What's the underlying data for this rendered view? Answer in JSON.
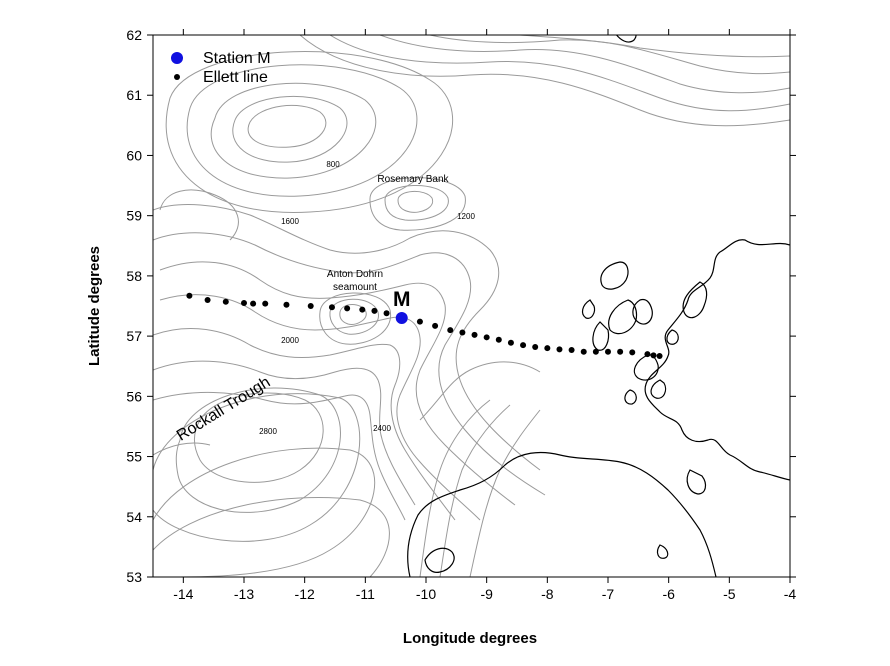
{
  "axes": {
    "xlabel": "Longitude degrees",
    "ylabel": "Latitude degrees",
    "xlim": [
      -14.5,
      -4
    ],
    "ylim": [
      53,
      62
    ],
    "xticks": [
      -14,
      -13,
      -12,
      -11,
      -10,
      -9,
      -8,
      -7,
      -6,
      -5,
      -4
    ],
    "yticks": [
      53,
      54,
      55,
      56,
      57,
      58,
      59,
      60,
      61,
      62
    ]
  },
  "legend": {
    "placement": "top-left",
    "items": [
      {
        "label": "Station M",
        "color": "#1010e0",
        "marker": "large-circle"
      },
      {
        "label": "Ellett line",
        "color": "#000000",
        "marker": "small-dot"
      }
    ]
  },
  "station": {
    "label": "M",
    "lon": -10.4,
    "lat": 57.3,
    "color": "#1010e0"
  },
  "ellett_line": {
    "color": "#000000",
    "points": [
      [
        -13.9,
        57.67
      ],
      [
        -13.6,
        57.6
      ],
      [
        -13.3,
        57.57
      ],
      [
        -13.0,
        57.55
      ],
      [
        -12.85,
        57.54
      ],
      [
        -12.65,
        57.54
      ],
      [
        -12.3,
        57.52
      ],
      [
        -11.9,
        57.5
      ],
      [
        -11.55,
        57.48
      ],
      [
        -11.3,
        57.46
      ],
      [
        -11.05,
        57.44
      ],
      [
        -10.85,
        57.42
      ],
      [
        -10.65,
        57.38
      ],
      [
        -10.1,
        57.24
      ],
      [
        -9.85,
        57.17
      ],
      [
        -9.6,
        57.1
      ],
      [
        -9.4,
        57.06
      ],
      [
        -9.2,
        57.02
      ],
      [
        -9.0,
        56.98
      ],
      [
        -8.8,
        56.94
      ],
      [
        -8.6,
        56.89
      ],
      [
        -8.4,
        56.85
      ],
      [
        -8.2,
        56.82
      ],
      [
        -8.0,
        56.8
      ],
      [
        -7.8,
        56.78
      ],
      [
        -7.6,
        56.77
      ],
      [
        -7.4,
        56.74
      ],
      [
        -7.2,
        56.74
      ],
      [
        -7.0,
        56.74
      ],
      [
        -6.8,
        56.74
      ],
      [
        -6.6,
        56.73
      ],
      [
        -6.35,
        56.7
      ],
      [
        -6.25,
        56.68
      ],
      [
        -6.15,
        56.67
      ]
    ]
  },
  "features": {
    "rosemary_bank": "Rosemary Bank",
    "anton_dohrn_line1": "Anton Dohrn",
    "anton_dohrn_line2": "seamount",
    "rockall_trough": "Rockall Trough"
  },
  "depth_labels": {
    "d800": "800",
    "d1200": "1200",
    "d1600": "1600",
    "d2000": "2000",
    "d2400": "2400",
    "d2800": "2800"
  }
}
